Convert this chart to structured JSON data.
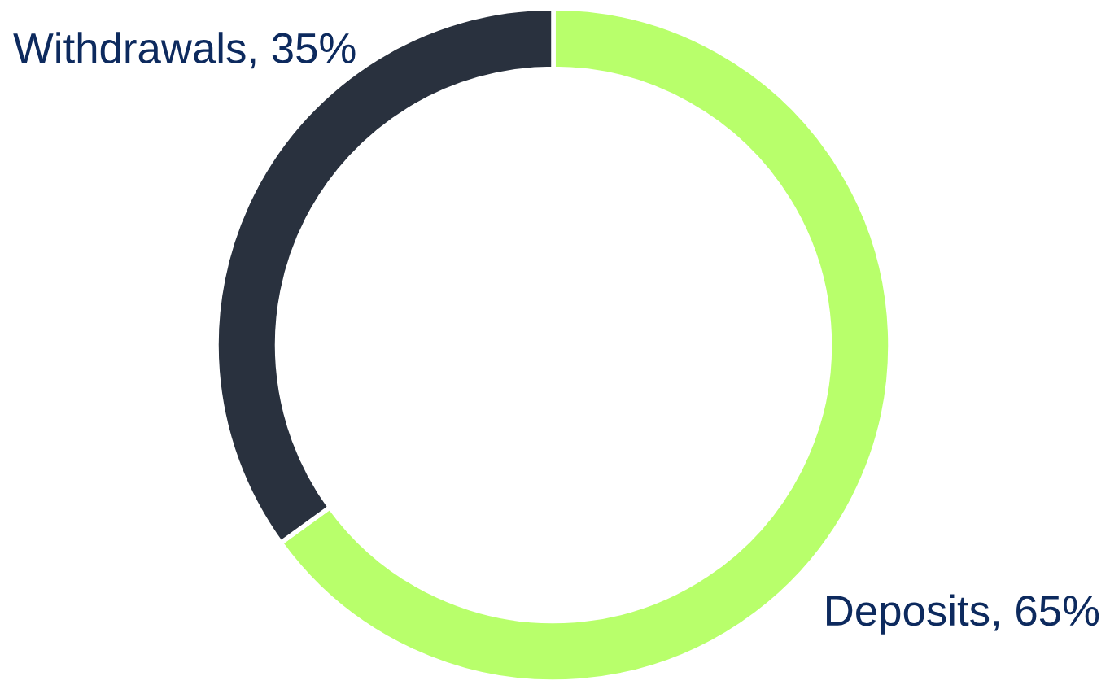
{
  "chart_data": {
    "type": "donut",
    "categories": [
      "Deposits",
      "Withdrawals"
    ],
    "values": [
      65,
      35
    ],
    "value_labels": [
      "65%",
      "35%"
    ],
    "colors": [
      "#b8ff6b",
      "#29313e"
    ],
    "legend": false
  }
}
